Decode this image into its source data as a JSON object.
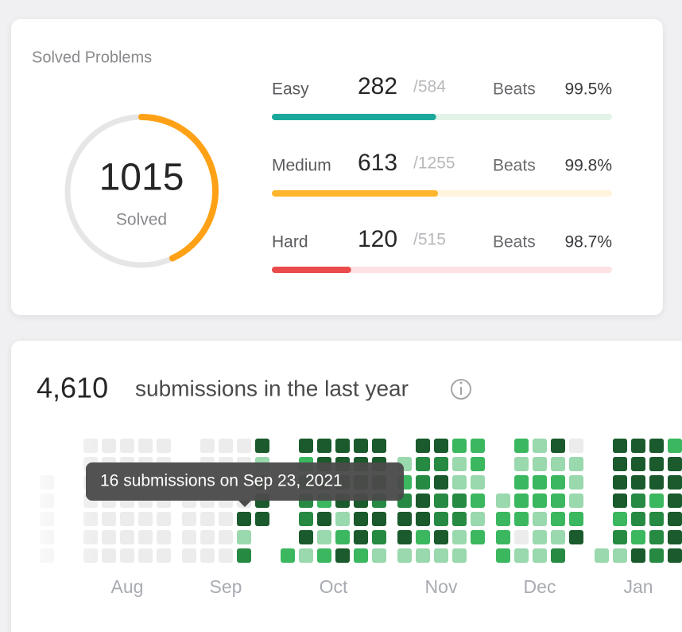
{
  "solved_problems": {
    "title": "Solved Problems",
    "total": 1015,
    "total_label": "Solved",
    "ring_color": "#ffa116",
    "difficulties": [
      {
        "name": "Easy",
        "solved": 282,
        "total": {
          "value": 584,
          "label": "/584"
        },
        "beats_label": "Beats",
        "beats": "99.5%",
        "color": "#1ba89c",
        "track_color": "#e2f4e8"
      },
      {
        "name": "Medium",
        "solved": 613,
        "total": {
          "value": 1255,
          "label": "/1255"
        },
        "beats_label": "Beats",
        "beats": "99.8%",
        "color": "#ffb62e",
        "track_color": "#fff4dc"
      },
      {
        "name": "Hard",
        "solved": 120,
        "total": {
          "value": 515,
          "label": "/515"
        },
        "beats_label": "Beats",
        "beats": "98.7%",
        "color": "#ea4a4a",
        "track_color": "#fde2e3"
      }
    ]
  },
  "submissions": {
    "count": "4,610",
    "caption": "submissions in the last year",
    "tooltip": "16 submissions on Sep 23, 2021",
    "level_colors": [
      "#ececec",
      "#9ad8ad",
      "#3bb75f",
      "#278a43",
      "#1a5a2c"
    ],
    "months": [
      {
        "label": null,
        "weeks": [
          [
            null,
            null,
            0,
            0,
            0,
            0,
            0
          ]
        ]
      },
      {
        "label": "Aug",
        "weeks": [
          [
            0,
            0,
            0,
            0,
            0,
            0,
            0
          ],
          [
            0,
            0,
            0,
            0,
            0,
            0,
            0
          ],
          [
            0,
            0,
            0,
            0,
            0,
            0,
            0
          ],
          [
            0,
            0,
            0,
            0,
            0,
            0,
            0
          ],
          [
            0,
            0,
            0,
            0,
            0,
            0,
            0
          ]
        ]
      },
      {
        "label": "Sep",
        "weeks": [
          [
            null,
            null,
            0,
            0,
            0,
            0,
            0
          ],
          [
            0,
            0,
            0,
            0,
            0,
            0,
            0
          ],
          [
            0,
            0,
            0,
            0,
            0,
            0,
            0
          ],
          [
            0,
            0,
            0,
            0,
            4,
            1,
            3
          ],
          [
            4,
            1,
            4,
            4,
            4,
            null,
            null
          ]
        ]
      },
      {
        "label": "Oct",
        "weeks": [
          [
            null,
            null,
            null,
            null,
            null,
            null,
            2
          ],
          [
            4,
            2,
            3,
            3,
            3,
            4,
            1
          ],
          [
            4,
            4,
            4,
            2,
            4,
            1,
            2
          ],
          [
            4,
            4,
            4,
            4,
            1,
            2,
            4
          ],
          [
            4,
            4,
            4,
            4,
            4,
            4,
            2
          ],
          [
            4,
            4,
            4,
            3,
            4,
            3,
            1
          ]
        ]
      },
      {
        "label": "Nov",
        "weeks": [
          [
            null,
            1,
            2,
            3,
            4,
            4,
            1
          ],
          [
            4,
            3,
            3,
            4,
            4,
            2,
            1
          ],
          [
            4,
            3,
            4,
            3,
            3,
            4,
            1
          ],
          [
            2,
            1,
            1,
            3,
            3,
            1,
            1
          ],
          [
            2,
            2,
            1,
            2,
            1,
            2,
            null
          ]
        ]
      },
      {
        "label": "Dec",
        "weeks": [
          [
            null,
            null,
            null,
            1,
            2,
            2,
            2
          ],
          [
            2,
            1,
            2,
            2,
            2,
            0,
            1
          ],
          [
            1,
            1,
            2,
            2,
            1,
            1,
            1
          ],
          [
            4,
            1,
            2,
            2,
            2,
            1,
            3
          ],
          [
            0,
            1,
            1,
            1,
            2,
            4,
            null
          ]
        ]
      },
      {
        "label": "Jan",
        "weeks": [
          [
            null,
            null,
            null,
            null,
            null,
            null,
            1
          ],
          [
            4,
            4,
            4,
            4,
            2,
            3,
            1
          ],
          [
            4,
            4,
            4,
            3,
            3,
            2,
            4
          ],
          [
            4,
            4,
            4,
            2,
            3,
            3,
            3
          ],
          [
            2,
            4,
            4,
            4,
            4,
            4,
            4
          ]
        ]
      }
    ]
  }
}
